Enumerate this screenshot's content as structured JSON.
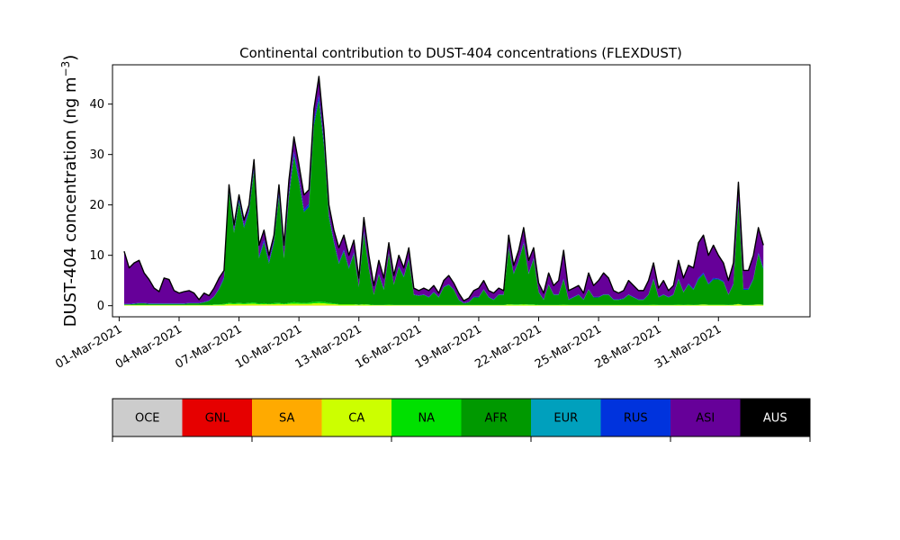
{
  "chart_data": {
    "type": "area",
    "stacked": true,
    "title": "Continental contribution to DUST-404 concentrations (FLEXDUST)",
    "xlabel": "",
    "ylabel": "DUST-404 concentration (ng m",
    "ylabel_sup": "−3",
    "ylabel_close": ")",
    "ylim": [
      -2.2,
      47.8
    ],
    "yticks": [
      0,
      10,
      20,
      30,
      40
    ],
    "ytick_labels": [
      "0",
      "10",
      "20",
      "30",
      "40"
    ],
    "xlim": [
      "2021-02-28T16:00",
      "2021-04-04T14:00"
    ],
    "xticks": [
      "2021-03-01",
      "2021-03-04",
      "2021-03-07",
      "2021-03-10",
      "2021-03-13",
      "2021-03-16",
      "2021-03-19",
      "2021-03-22",
      "2021-03-25",
      "2021-03-28",
      "2021-03-31"
    ],
    "xtick_labels": [
      "01-Mar-2021",
      "04-Mar-2021",
      "07-Mar-2021",
      "10-Mar-2021",
      "13-Mar-2021",
      "16-Mar-2021",
      "19-Mar-2021",
      "22-Mar-2021",
      "25-Mar-2021",
      "28-Mar-2021",
      "31-Mar-2021"
    ],
    "grid": false,
    "x": [
      "2021-03-01T06:00",
      "2021-03-01T12:00",
      "2021-03-01T18:00",
      "2021-03-02T00:00",
      "2021-03-02T06:00",
      "2021-03-02T12:00",
      "2021-03-02T18:00",
      "2021-03-03T00:00",
      "2021-03-03T06:00",
      "2021-03-03T12:00",
      "2021-03-03T18:00",
      "2021-03-04T00:00",
      "2021-03-04T06:00",
      "2021-03-04T12:00",
      "2021-03-04T18:00",
      "2021-03-05T00:00",
      "2021-03-05T06:00",
      "2021-03-05T12:00",
      "2021-03-05T18:00",
      "2021-03-06T00:00",
      "2021-03-06T06:00",
      "2021-03-06T12:00",
      "2021-03-06T18:00",
      "2021-03-07T00:00",
      "2021-03-07T06:00",
      "2021-03-07T12:00",
      "2021-03-07T18:00",
      "2021-03-08T00:00",
      "2021-03-08T06:00",
      "2021-03-08T12:00",
      "2021-03-08T18:00",
      "2021-03-09T00:00",
      "2021-03-09T06:00",
      "2021-03-09T12:00",
      "2021-03-09T18:00",
      "2021-03-10T00:00",
      "2021-03-10T06:00",
      "2021-03-10T12:00",
      "2021-03-10T18:00",
      "2021-03-11T00:00",
      "2021-03-11T06:00",
      "2021-03-11T12:00",
      "2021-03-11T18:00",
      "2021-03-12T00:00",
      "2021-03-12T06:00",
      "2021-03-12T12:00",
      "2021-03-12T18:00",
      "2021-03-13T00:00",
      "2021-03-13T06:00",
      "2021-03-13T12:00",
      "2021-03-13T18:00",
      "2021-03-14T00:00",
      "2021-03-14T06:00",
      "2021-03-14T12:00",
      "2021-03-14T18:00",
      "2021-03-15T00:00",
      "2021-03-15T06:00",
      "2021-03-15T12:00",
      "2021-03-15T18:00",
      "2021-03-16T00:00",
      "2021-03-16T06:00",
      "2021-03-16T12:00",
      "2021-03-16T18:00",
      "2021-03-17T00:00",
      "2021-03-17T06:00",
      "2021-03-17T12:00",
      "2021-03-17T18:00",
      "2021-03-18T00:00",
      "2021-03-18T06:00",
      "2021-03-18T12:00",
      "2021-03-18T18:00",
      "2021-03-19T00:00",
      "2021-03-19T06:00",
      "2021-03-19T12:00",
      "2021-03-19T18:00",
      "2021-03-20T00:00",
      "2021-03-20T06:00",
      "2021-03-20T12:00",
      "2021-03-20T18:00",
      "2021-03-21T00:00",
      "2021-03-21T06:00",
      "2021-03-21T12:00",
      "2021-03-21T18:00",
      "2021-03-22T00:00",
      "2021-03-22T06:00",
      "2021-03-22T12:00",
      "2021-03-22T18:00",
      "2021-03-23T00:00",
      "2021-03-23T06:00",
      "2021-03-23T12:00",
      "2021-03-23T18:00",
      "2021-03-24T00:00",
      "2021-03-24T06:00",
      "2021-03-24T12:00",
      "2021-03-24T18:00",
      "2021-03-25T00:00",
      "2021-03-25T06:00",
      "2021-03-25T12:00",
      "2021-03-25T18:00",
      "2021-03-26T00:00",
      "2021-03-26T06:00",
      "2021-03-26T12:00",
      "2021-03-26T18:00",
      "2021-03-27T00:00",
      "2021-03-27T06:00",
      "2021-03-27T12:00",
      "2021-03-27T18:00",
      "2021-03-28T00:00",
      "2021-03-28T06:00",
      "2021-03-28T12:00",
      "2021-03-28T18:00",
      "2021-03-29T00:00",
      "2021-03-29T06:00",
      "2021-03-29T12:00",
      "2021-03-29T18:00",
      "2021-03-30T00:00",
      "2021-03-30T06:00",
      "2021-03-30T12:00",
      "2021-03-30T18:00",
      "2021-03-31T00:00",
      "2021-03-31T06:00",
      "2021-03-31T12:00",
      "2021-03-31T18:00",
      "2021-04-01T00:00",
      "2021-04-01T06:00",
      "2021-04-01T12:00",
      "2021-04-01T18:00",
      "2021-04-02T00:00",
      "2021-04-02T06:00"
    ],
    "total": [
      10.8,
      7.5,
      8.5,
      9.0,
      6.5,
      5.2,
      3.5,
      2.8,
      5.5,
      5.2,
      3.0,
      2.5,
      2.8,
      3.0,
      2.5,
      1.2,
      2.5,
      2.0,
      3.5,
      5.5,
      7.0,
      24.0,
      16.0,
      22.0,
      17.0,
      20.0,
      29.0,
      12.0,
      15.0,
      10.0,
      14.0,
      24.0,
      12.0,
      25.0,
      33.5,
      28.0,
      22.0,
      23.0,
      39.0,
      45.5,
      35.0,
      20.0,
      15.0,
      11.5,
      14.0,
      10.0,
      13.0,
      5.5,
      17.5,
      10.0,
      4.0,
      9.0,
      5.5,
      12.5,
      6.0,
      10.0,
      7.5,
      11.5,
      3.5,
      3.0,
      3.5,
      3.0,
      4.0,
      2.5,
      5.0,
      6.0,
      4.5,
      2.5,
      1.0,
      1.5,
      3.0,
      3.5,
      5.0,
      3.0,
      2.5,
      3.5,
      3.0,
      14.0,
      8.0,
      11.0,
      15.5,
      9.0,
      11.5,
      4.5,
      2.5,
      6.5,
      4.0,
      5.0,
      11.0,
      3.0,
      3.5,
      4.0,
      2.5,
      6.5,
      4.0,
      5.0,
      6.5,
      5.5,
      3.0,
      2.5,
      3.0,
      5.0,
      4.0,
      3.0,
      3.0,
      5.0,
      8.5,
      3.5,
      5.0,
      3.0,
      4.0,
      9.0,
      5.5,
      8.0,
      7.5,
      12.5,
      14.0,
      10.0,
      12.0,
      10.0,
      8.5,
      5.0,
      8.5,
      24.5,
      7.0,
      7.0,
      10.0,
      15.5,
      12.0,
      8.5,
      10.0
    ],
    "afr": [
      0.1,
      0.1,
      0.2,
      0.3,
      0.3,
      0.2,
      0.2,
      0.2,
      0.2,
      0.2,
      0.2,
      0.2,
      0.2,
      0.3,
      0.3,
      0.3,
      0.5,
      0.8,
      1.5,
      3.0,
      5.0,
      22.0,
      14.0,
      20.0,
      15.0,
      18.0,
      26.0,
      9.0,
      12.0,
      8.0,
      12.0,
      21.0,
      9.0,
      21.0,
      29.0,
      24.0,
      18.0,
      19.0,
      35.0,
      40.0,
      31.0,
      17.0,
      12.0,
      8.0,
      10.5,
      7.0,
      10.0,
      3.5,
      14.0,
      7.0,
      2.0,
      6.0,
      3.0,
      10.0,
      4.0,
      7.5,
      5.5,
      9.0,
      2.0,
      1.8,
      2.0,
      1.5,
      2.5,
      1.5,
      3.5,
      4.0,
      3.0,
      1.0,
      0.3,
      0.5,
      1.5,
      1.5,
      3.0,
      1.5,
      1.0,
      2.0,
      2.0,
      11.0,
      6.0,
      8.5,
      12.0,
      6.0,
      9.0,
      2.5,
      1.0,
      4.0,
      2.0,
      2.0,
      5.0,
      1.0,
      1.5,
      2.0,
      1.0,
      3.0,
      1.5,
      1.5,
      2.0,
      2.0,
      1.0,
      1.0,
      1.2,
      2.0,
      1.5,
      1.0,
      1.0,
      2.0,
      5.0,
      1.5,
      2.0,
      1.5,
      2.0,
      5.0,
      2.5,
      4.0,
      3.0,
      5.0,
      6.0,
      4.0,
      5.0,
      5.0,
      4.5,
      2.0,
      4.0,
      20.0,
      3.0,
      3.0,
      5.0,
      10.0,
      7.0,
      4.5,
      5.5
    ],
    "na": [
      0.05,
      0.05,
      0.05,
      0.05,
      0.05,
      0.05,
      0.05,
      0.05,
      0.05,
      0.05,
      0.05,
      0.05,
      0.05,
      0.05,
      0.05,
      0.05,
      0.05,
      0.05,
      0.1,
      0.1,
      0.15,
      0.2,
      0.15,
      0.2,
      0.15,
      0.2,
      0.25,
      0.15,
      0.2,
      0.1,
      0.2,
      0.2,
      0.15,
      0.2,
      0.3,
      0.25,
      0.2,
      0.25,
      0.3,
      0.3,
      0.3,
      0.2,
      0.15,
      0.1,
      0.1,
      0.1,
      0.1,
      0.05,
      0.1,
      0.1,
      0.05,
      0.05,
      0.05,
      0.05,
      0.05,
      0.05,
      0.05,
      0.05,
      0.05,
      0.05,
      0.05,
      0.05,
      0.05,
      0.05,
      0.05,
      0.05,
      0.05,
      0.05,
      0.05,
      0.05,
      0.05,
      0.05,
      0.05,
      0.05,
      0.05,
      0.05,
      0.05,
      0.1,
      0.1,
      0.1,
      0.1,
      0.1,
      0.1,
      0.05,
      0.05,
      0.05,
      0.05,
      0.05,
      0.05,
      0.05,
      0.05,
      0.05,
      0.05,
      0.05,
      0.05,
      0.05,
      0.05,
      0.05,
      0.05,
      0.05,
      0.05,
      0.05,
      0.05,
      0.05,
      0.05,
      0.05,
      0.05,
      0.05,
      0.05,
      0.05,
      0.05,
      0.05,
      0.05,
      0.05,
      0.05,
      0.05,
      0.05,
      0.05,
      0.05,
      0.05,
      0.05,
      0.05,
      0.05,
      0.05,
      0.05,
      0.05,
      0.05,
      0.05,
      0.05,
      0.05,
      0.05
    ],
    "ca": [
      0.1,
      0.1,
      0.1,
      0.1,
      0.1,
      0.1,
      0.1,
      0.1,
      0.1,
      0.1,
      0.1,
      0.1,
      0.1,
      0.1,
      0.1,
      0.1,
      0.1,
      0.1,
      0.15,
      0.15,
      0.2,
      0.3,
      0.25,
      0.3,
      0.25,
      0.3,
      0.35,
      0.2,
      0.25,
      0.2,
      0.25,
      0.3,
      0.2,
      0.3,
      0.35,
      0.3,
      0.3,
      0.3,
      0.4,
      0.45,
      0.4,
      0.3,
      0.25,
      0.2,
      0.2,
      0.2,
      0.2,
      0.15,
      0.2,
      0.15,
      0.1,
      0.1,
      0.1,
      0.15,
      0.1,
      0.1,
      0.1,
      0.1,
      0.1,
      0.1,
      0.1,
      0.1,
      0.1,
      0.1,
      0.1,
      0.1,
      0.1,
      0.1,
      0.1,
      0.1,
      0.1,
      0.1,
      0.1,
      0.1,
      0.1,
      0.1,
      0.1,
      0.2,
      0.15,
      0.15,
      0.2,
      0.15,
      0.15,
      0.1,
      0.1,
      0.1,
      0.1,
      0.1,
      0.15,
      0.1,
      0.1,
      0.1,
      0.1,
      0.1,
      0.1,
      0.1,
      0.1,
      0.1,
      0.1,
      0.1,
      0.1,
      0.1,
      0.1,
      0.1,
      0.1,
      0.1,
      0.15,
      0.1,
      0.1,
      0.1,
      0.1,
      0.15,
      0.1,
      0.15,
      0.1,
      0.15,
      0.2,
      0.15,
      0.15,
      0.15,
      0.15,
      0.1,
      0.15,
      0.3,
      0.1,
      0.1,
      0.15,
      0.2,
      0.15,
      0.1,
      0.1
    ],
    "sa": [
      0.0,
      0.0,
      0.0,
      0.0,
      0.0,
      0.0,
      0.0,
      0.0,
      0.0,
      0.0,
      0.0,
      0.0,
      0.0,
      0.0,
      0.0,
      0.0,
      0.0,
      0.0,
      0.0,
      0.0,
      0.0,
      0.05,
      0.05,
      0.05,
      0.05,
      0.05,
      0.05,
      0.05,
      0.05,
      0.05,
      0.05,
      0.05,
      0.05,
      0.05,
      0.05,
      0.05,
      0.05,
      0.05,
      0.05,
      0.05,
      0.05,
      0.05,
      0.05,
      0.0,
      0.0,
      0.0,
      0.0,
      0.0,
      0.0,
      0.0,
      0.0,
      0.0,
      0.0,
      0.0,
      0.0,
      0.0,
      0.0,
      0.0,
      0.0,
      0.0,
      0.0,
      0.0,
      0.0,
      0.0,
      0.0,
      0.0,
      0.0,
      0.0,
      0.0,
      0.0,
      0.0,
      0.0,
      0.0,
      0.0,
      0.0,
      0.0,
      0.0,
      0.0,
      0.0,
      0.0,
      0.0,
      0.0,
      0.0,
      0.0,
      0.0,
      0.0,
      0.0,
      0.0,
      0.0,
      0.0,
      0.0,
      0.0,
      0.0,
      0.0,
      0.0,
      0.0,
      0.0,
      0.0,
      0.0,
      0.0,
      0.0,
      0.0,
      0.0,
      0.0,
      0.0,
      0.0,
      0.0,
      0.0,
      0.0,
      0.0,
      0.0,
      0.0,
      0.0,
      0.0,
      0.0,
      0.0,
      0.0,
      0.0,
      0.0,
      0.0,
      0.0,
      0.0,
      0.0,
      0.0,
      0.0,
      0.0,
      0.0,
      0.0,
      0.0,
      0.0,
      0.0
    ],
    "eur_rus": [
      0.1,
      0.1,
      0.1,
      0.1,
      0.1,
      0.1,
      0.1,
      0.1,
      0.1,
      0.1,
      0.1,
      0.1,
      0.1,
      0.1,
      0.1,
      0.1,
      0.1,
      0.1,
      0.1,
      0.2,
      0.3,
      0.5,
      0.4,
      0.5,
      0.4,
      0.5,
      0.6,
      0.4,
      0.5,
      0.4,
      0.5,
      0.6,
      0.4,
      0.6,
      0.8,
      0.7,
      0.5,
      0.6,
      0.9,
      1.0,
      0.8,
      0.5,
      0.4,
      0.3,
      0.3,
      0.3,
      0.3,
      0.2,
      0.4,
      0.2,
      0.1,
      0.2,
      0.2,
      0.2,
      0.1,
      0.2,
      0.2,
      0.2,
      0.1,
      0.1,
      0.1,
      0.1,
      0.1,
      0.1,
      0.1,
      0.1,
      0.1,
      0.1,
      0.1,
      0.1,
      0.1,
      0.1,
      0.1,
      0.1,
      0.1,
      0.1,
      0.1,
      0.3,
      0.2,
      0.2,
      0.3,
      0.2,
      0.2,
      0.1,
      0.1,
      0.1,
      0.1,
      0.1,
      0.2,
      0.1,
      0.1,
      0.1,
      0.1,
      0.1,
      0.1,
      0.1,
      0.1,
      0.1,
      0.1,
      0.1,
      0.1,
      0.1,
      0.1,
      0.1,
      0.1,
      0.1,
      0.2,
      0.1,
      0.1,
      0.1,
      0.1,
      0.2,
      0.1,
      0.2,
      0.2,
      0.3,
      0.3,
      0.2,
      0.3,
      0.2,
      0.2,
      0.1,
      0.2,
      0.5,
      0.2,
      0.2,
      0.2,
      0.3,
      0.3,
      0.2,
      0.2
    ],
    "legend": {
      "placement": "bottom",
      "items": [
        {
          "label": "OCE",
          "color": "#cccccc",
          "text_color": "#000000"
        },
        {
          "label": "GNL",
          "color": "#e60000",
          "text_color": "#000000"
        },
        {
          "label": "SA",
          "color": "#ffaa00",
          "text_color": "#000000"
        },
        {
          "label": "CA",
          "color": "#ccff00",
          "text_color": "#000000"
        },
        {
          "label": "NA",
          "color": "#00e000",
          "text_color": "#000000"
        },
        {
          "label": "AFR",
          "color": "#009900",
          "text_color": "#000000"
        },
        {
          "label": "EUR",
          "color": "#00a0bd",
          "text_color": "#000000"
        },
        {
          "label": "RUS",
          "color": "#0033dd",
          "text_color": "#000000"
        },
        {
          "label": "ASI",
          "color": "#660099",
          "text_color": "#000000"
        },
        {
          "label": "AUS",
          "color": "#000000",
          "text_color": "#ffffff"
        }
      ]
    }
  }
}
